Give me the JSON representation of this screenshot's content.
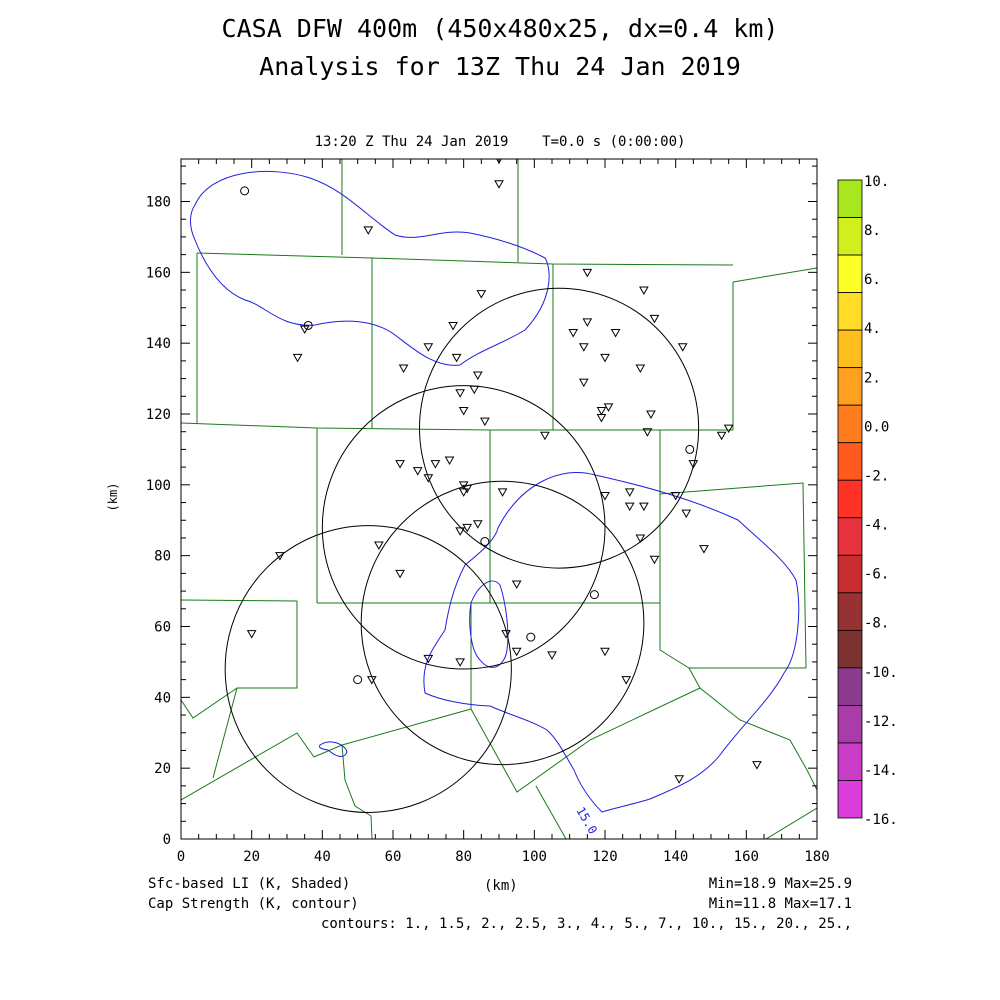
{
  "header": {
    "title_line1": "CASA DFW 400m (450x480x25, dx=0.4 km)",
    "title_line2": "Analysis for 13Z Thu 24 Jan 2019",
    "subtitle": "13:20 Z Thu 24 Jan 2019    T=0.0 s (0:00:00)"
  },
  "footer": {
    "shaded_label": "Sfc-based LI (K, Shaded)",
    "contour_label": "Cap Strength (K, contour)",
    "xunit_label": "(km)",
    "shaded_minmax": "Min=18.9 Max=25.9",
    "contour_minmax": "Min=11.8 Max=17.1",
    "contours_text": "contours: 1., 1.5, 2., 2.5, 3., 4., 5., 7., 10., 15., 20., 25.,"
  },
  "chart_data": {
    "type": "contour_map",
    "xlabel": "(km)",
    "ylabel": "(km)",
    "xlim": [
      0,
      180
    ],
    "ylim": [
      0,
      192
    ],
    "xticks": [
      0,
      20,
      40,
      60,
      80,
      100,
      120,
      140,
      160,
      180
    ],
    "yticks": [
      0,
      20,
      40,
      60,
      80,
      100,
      120,
      140,
      160,
      180
    ],
    "colorbar": {
      "labels": [
        "10.",
        "8.",
        "6.",
        "4.",
        "2.",
        "0.0",
        "-2.",
        "-4.",
        "-6.",
        "-8.",
        "-10.",
        "-12.",
        "-14.",
        "-16."
      ],
      "colors": [
        "#a8e61e",
        "#d2f01e",
        "#ffff28",
        "#ffdc28",
        "#ffbe1e",
        "#ffa01e",
        "#ff7d1e",
        "#ff5a1e",
        "#ff3228",
        "#e6323c",
        "#c82d32",
        "#963232",
        "#7d3232",
        "#8c3c8c",
        "#aa3caa",
        "#c83cc8",
        "#dc3cdc"
      ]
    },
    "contour_value_label": "15.0",
    "contour_color": "#2020dd",
    "boundary_color": "#1a7a1a",
    "radar_rings": [
      {
        "cx": 107,
        "cy": 116,
        "r": 39.5
      },
      {
        "cx": 80,
        "cy": 88,
        "r": 40
      },
      {
        "cx": 53,
        "cy": 48,
        "r": 40.5
      },
      {
        "cx": 91,
        "cy": 61,
        "r": 40
      }
    ],
    "obs_triangles": [
      [
        90,
        192
      ],
      [
        90,
        185
      ],
      [
        53,
        172
      ],
      [
        33,
        136
      ],
      [
        63,
        133
      ],
      [
        35,
        144
      ],
      [
        70,
        139
      ],
      [
        77,
        145
      ],
      [
        85,
        154
      ],
      [
        78,
        136
      ],
      [
        84,
        131
      ],
      [
        83,
        127
      ],
      [
        79,
        126
      ],
      [
        80,
        121
      ],
      [
        86,
        118
      ],
      [
        111,
        143
      ],
      [
        115,
        146
      ],
      [
        114,
        139
      ],
      [
        114,
        129
      ],
      [
        119,
        119
      ],
      [
        119,
        121
      ],
      [
        121,
        122
      ],
      [
        120,
        136
      ],
      [
        123,
        143
      ],
      [
        131,
        155
      ],
      [
        134,
        147
      ],
      [
        130,
        133
      ],
      [
        133,
        120
      ],
      [
        132,
        115
      ],
      [
        142,
        139
      ],
      [
        115,
        160
      ],
      [
        103,
        114
      ],
      [
        62,
        106
      ],
      [
        67,
        104
      ],
      [
        70,
        102
      ],
      [
        72,
        106
      ],
      [
        76,
        107
      ],
      [
        81,
        99
      ],
      [
        80,
        98
      ],
      [
        80,
        100
      ],
      [
        91,
        98
      ],
      [
        84,
        89
      ],
      [
        81,
        88
      ],
      [
        79,
        87
      ],
      [
        120,
        97
      ],
      [
        127,
        98
      ],
      [
        127,
        94
      ],
      [
        131,
        94
      ],
      [
        130,
        85
      ],
      [
        134,
        79
      ],
      [
        140,
        97
      ],
      [
        143,
        92
      ],
      [
        145,
        106
      ],
      [
        148,
        82
      ],
      [
        153,
        114
      ],
      [
        155,
        116
      ],
      [
        28,
        80
      ],
      [
        20,
        58
      ],
      [
        56,
        83
      ],
      [
        62,
        75
      ],
      [
        95,
        72
      ],
      [
        92,
        58
      ],
      [
        95,
        53
      ],
      [
        70,
        51
      ],
      [
        79,
        50
      ],
      [
        105,
        52
      ],
      [
        120,
        53
      ],
      [
        126,
        45
      ],
      [
        54,
        45
      ],
      [
        141,
        17
      ],
      [
        163,
        21
      ]
    ],
    "obs_circles": [
      [
        18,
        183
      ],
      [
        36,
        145
      ],
      [
        50,
        45
      ],
      [
        86,
        84
      ],
      [
        117,
        69
      ],
      [
        99,
        57
      ],
      [
        144,
        110
      ]
    ]
  }
}
